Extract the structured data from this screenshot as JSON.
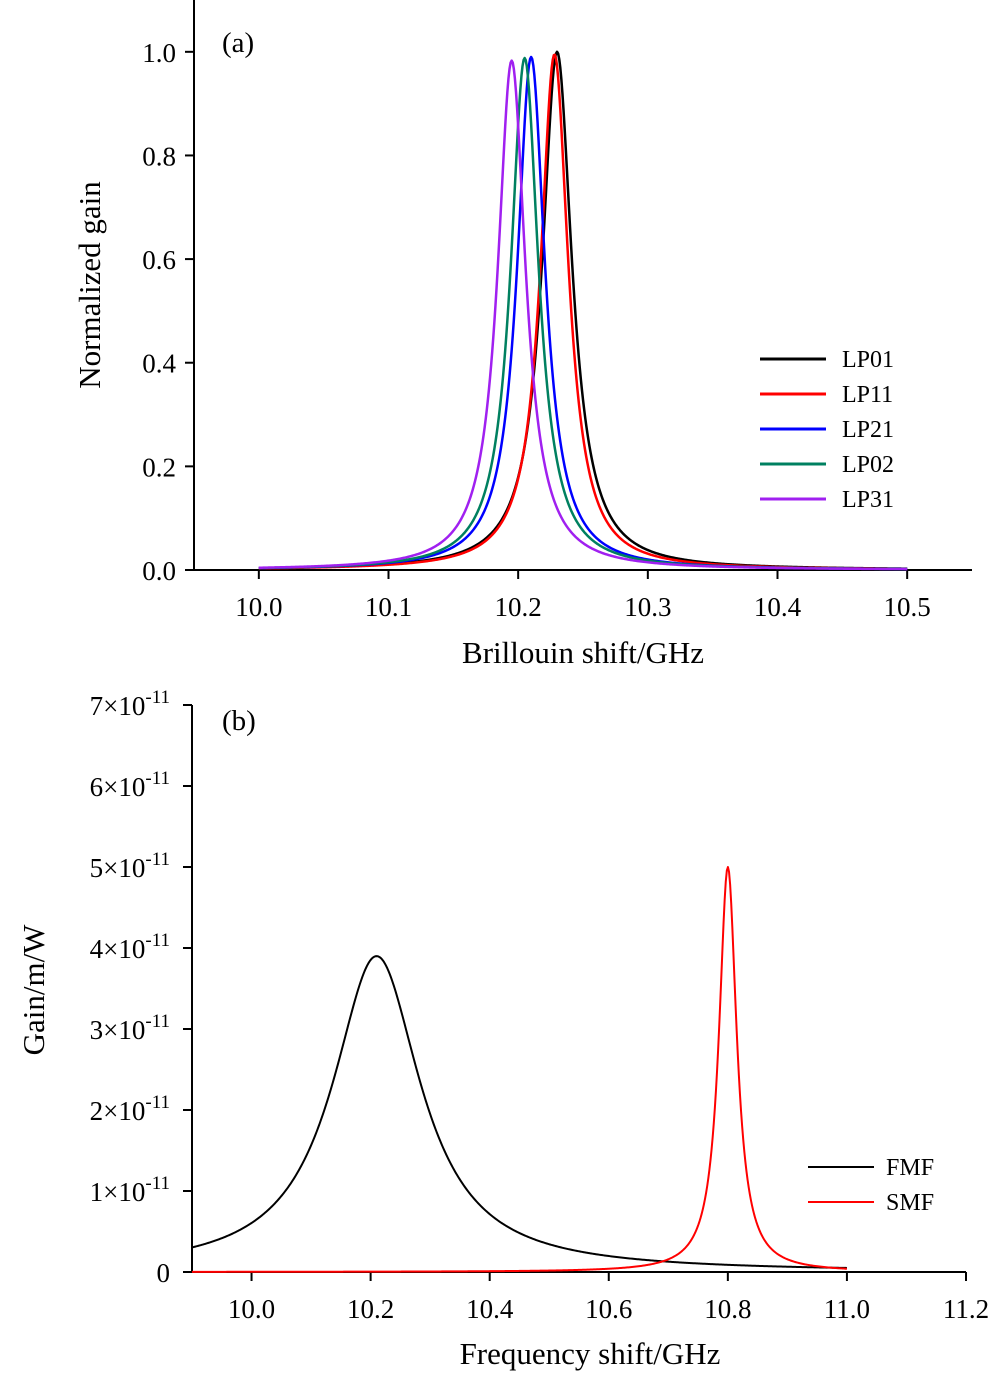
{
  "chart_data": [
    {
      "type": "line",
      "panel_label": "(a)",
      "xlabel": "Brillouin shift/GHz",
      "ylabel": "Normalized gain",
      "xlim": [
        9.95,
        10.55
      ],
      "ylim": [
        0.0,
        1.1
      ],
      "xticks": [
        "10.0",
        "10.1",
        "10.2",
        "10.3",
        "10.4",
        "10.5"
      ],
      "yticks": [
        "0.0",
        "0.2",
        "0.4",
        "0.6",
        "0.8",
        "1.0"
      ],
      "x_range": [
        10.0,
        10.5
      ],
      "legend_placement": "center-right",
      "grid": false,
      "series": [
        {
          "name": "LP01",
          "color": "#000000",
          "peak_x": 10.23,
          "peak_y": 1.0,
          "hwhm": 0.014
        },
        {
          "name": "LP11",
          "color": "#ff0000",
          "peak_x": 10.228,
          "peak_y": 0.995,
          "hwhm": 0.013
        },
        {
          "name": "LP21",
          "color": "#0000ff",
          "peak_x": 10.21,
          "peak_y": 0.99,
          "hwhm": 0.013
        },
        {
          "name": "LP02",
          "color": "#008060",
          "peak_x": 10.205,
          "peak_y": 0.988,
          "hwhm": 0.013
        },
        {
          "name": "LP31",
          "color": "#a020f0",
          "peak_x": 10.195,
          "peak_y": 0.983,
          "hwhm": 0.013
        }
      ]
    },
    {
      "type": "line",
      "panel_label": "(b)",
      "xlabel": "Frequency shift/GHz",
      "ylabel": "Gain/m/W",
      "xlim": [
        9.9,
        11.2
      ],
      "ylim": [
        0,
        7e-11
      ],
      "xticks": [
        "10.0",
        "10.2",
        "10.4",
        "10.6",
        "10.8",
        "11.0",
        "11.2"
      ],
      "yticks": [
        "0",
        "1×10",
        "2×10",
        "3×10",
        "4×10",
        "5×10",
        "6×10",
        "7×10"
      ],
      "ytick_exponent": "-11",
      "x_range": [
        9.9,
        11.0
      ],
      "legend_placement": "bottom-right",
      "grid": false,
      "series": [
        {
          "name": "FMF",
          "color": "#000000",
          "peak_x": 10.21,
          "peak_y": 3.9e-11,
          "hwhm": 0.09
        },
        {
          "name": "SMF",
          "color": "#ff0000",
          "peak_x": 10.8,
          "peak_y": 5e-11,
          "hwhm": 0.018
        }
      ]
    }
  ]
}
